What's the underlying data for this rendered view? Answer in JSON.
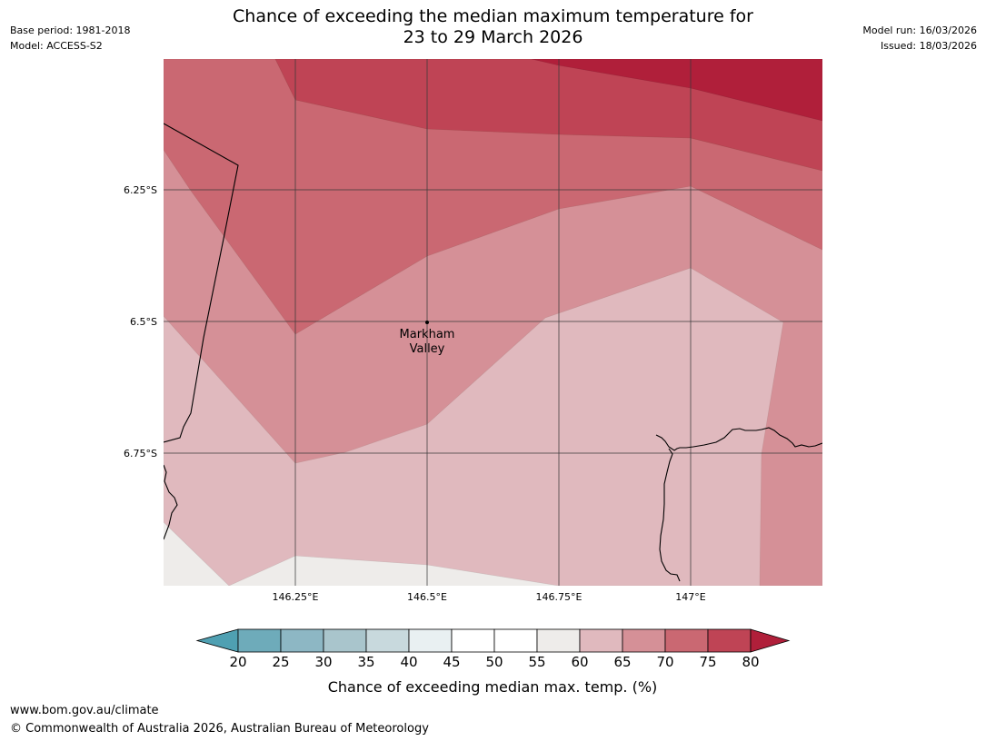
{
  "header": {
    "base_period": "Base period: 1981-2018",
    "model": "Model: ACCESS-S2",
    "model_run": "Model run: 16/03/2026",
    "issued": "Issued: 18/03/2026",
    "title_line1": "Chance of exceeding the median maximum temperature for",
    "title_line2": "23 to 29 March 2026"
  },
  "map": {
    "lat_labels": [
      "6.25°S",
      "6.5°S",
      "6.75°S"
    ],
    "lon_labels": [
      "146.25°E",
      "146.5°E",
      "146.75°E",
      "147°E"
    ],
    "place_label_line1": "Markham",
    "place_label_line2": "Valley",
    "colors": {
      "band_55_60": "#eeecea",
      "band_60_65": "#e0b9be",
      "band_65_70": "#d59097",
      "band_70_75": "#ca6872",
      "band_75_80": "#bf4455",
      "band_80_plus": "#b01f3a"
    }
  },
  "legend": {
    "ticks": [
      "20",
      "25",
      "30",
      "35",
      "40",
      "45",
      "50",
      "55",
      "60",
      "65",
      "70",
      "75",
      "80"
    ],
    "colors": [
      "#6eabba",
      "#8db7c4",
      "#a9c5cc",
      "#c8d9dd",
      "#e9f0f2",
      "#ffffff",
      "#ffffff",
      "#eeecea",
      "#e0b9be",
      "#d59097",
      "#ca6872",
      "#bf4455"
    ],
    "under_color": "#4fa0b2",
    "over_color": "#b01f3a",
    "label": "Chance of exceeding median max. temp. (%)"
  },
  "footer": {
    "url": "www.bom.gov.au/climate",
    "copyright": "© Commonwealth of Australia 2026, Australian Bureau of Meteorology"
  }
}
